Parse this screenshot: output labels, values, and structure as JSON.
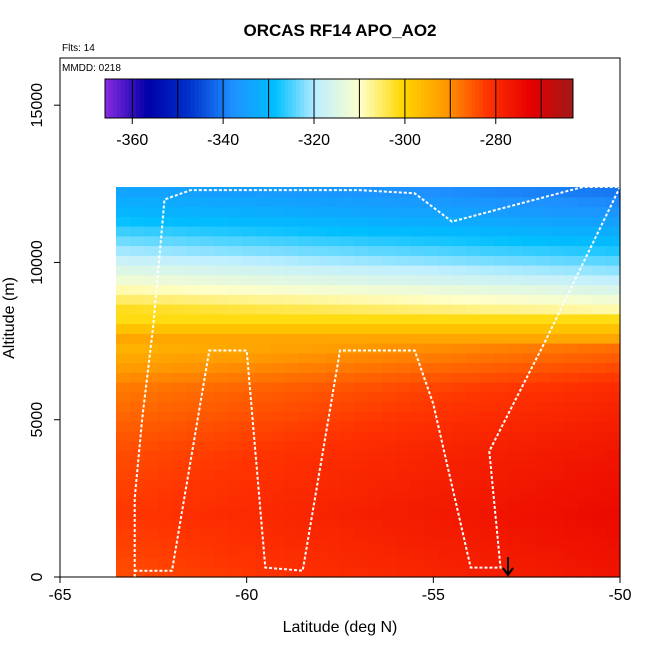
{
  "chart_data": {
    "type": "heatmap",
    "title": "ORCAS RF14 APO_AO2",
    "xlabel": "Latitude (deg N)",
    "ylabel": "Altitude (m)",
    "xlim": [
      -65,
      -50
    ],
    "ylim": [
      0,
      16500
    ],
    "x_ticks": [
      -65,
      -60,
      -55,
      -50
    ],
    "y_ticks": [
      0,
      5000,
      10000,
      15000
    ],
    "x_tick_labels": [
      "-65",
      "-60",
      "-55",
      "-50"
    ],
    "y_tick_labels": [
      "0",
      "5000",
      "10000",
      "15000"
    ],
    "notes": {
      "flights": "Flts: 14",
      "date": "MMDD: 0218"
    },
    "colorbar": {
      "range": [
        -366,
        -263
      ],
      "ticks": [
        -360,
        -340,
        -320,
        -300,
        -280
      ],
      "tick_labels": [
        "-360",
        "-340",
        "-320",
        "-300",
        "-280"
      ],
      "colors": [
        "#8a2be2",
        "#0000a8",
        "#0033cc",
        "#1e90ff",
        "#00bfff",
        "#bfefff",
        "#ffffc8",
        "#ffd700",
        "#ff9900",
        "#ff3300",
        "#e60000",
        "#a01818"
      ]
    },
    "field_extent": {
      "lat": [
        -63.5,
        -50
      ],
      "alt": [
        0,
        12400
      ]
    },
    "field_profile": [
      {
        "alt": 0,
        "value": -280
      },
      {
        "alt": 2000,
        "value": -278
      },
      {
        "alt": 4000,
        "value": -280
      },
      {
        "alt": 6000,
        "value": -284
      },
      {
        "alt": 7500,
        "value": -292
      },
      {
        "alt": 8500,
        "value": -305
      },
      {
        "alt": 9500,
        "value": -316
      },
      {
        "alt": 10500,
        "value": -325
      },
      {
        "alt": 11500,
        "value": -333
      },
      {
        "alt": 12400,
        "value": -338
      }
    ],
    "flight_track": [
      [
        -63.0,
        0
      ],
      [
        -63.0,
        2500
      ],
      [
        -62.8,
        5000
      ],
      [
        -62.5,
        8000
      ],
      [
        -62.2,
        12000
      ],
      [
        -61.5,
        12300
      ],
      [
        -59.5,
        12300
      ],
      [
        -57.0,
        12300
      ],
      [
        -55.5,
        12200
      ],
      [
        -54.5,
        11300
      ],
      [
        -51.0,
        12400
      ],
      [
        -50.0,
        12400
      ],
      [
        -52.0,
        7500
      ],
      [
        -53.5,
        4000
      ],
      [
        -53.2,
        300
      ],
      [
        -54.0,
        300
      ],
      [
        -55.0,
        5500
      ],
      [
        -55.5,
        7200
      ],
      [
        -57.5,
        7200
      ],
      [
        -58.5,
        200
      ],
      [
        -59.5,
        300
      ],
      [
        -60.0,
        7200
      ],
      [
        -61.0,
        7200
      ],
      [
        -62.0,
        200
      ],
      [
        -63.0,
        200
      ]
    ],
    "marker": {
      "lat": -53.0,
      "alt": 500
    }
  }
}
